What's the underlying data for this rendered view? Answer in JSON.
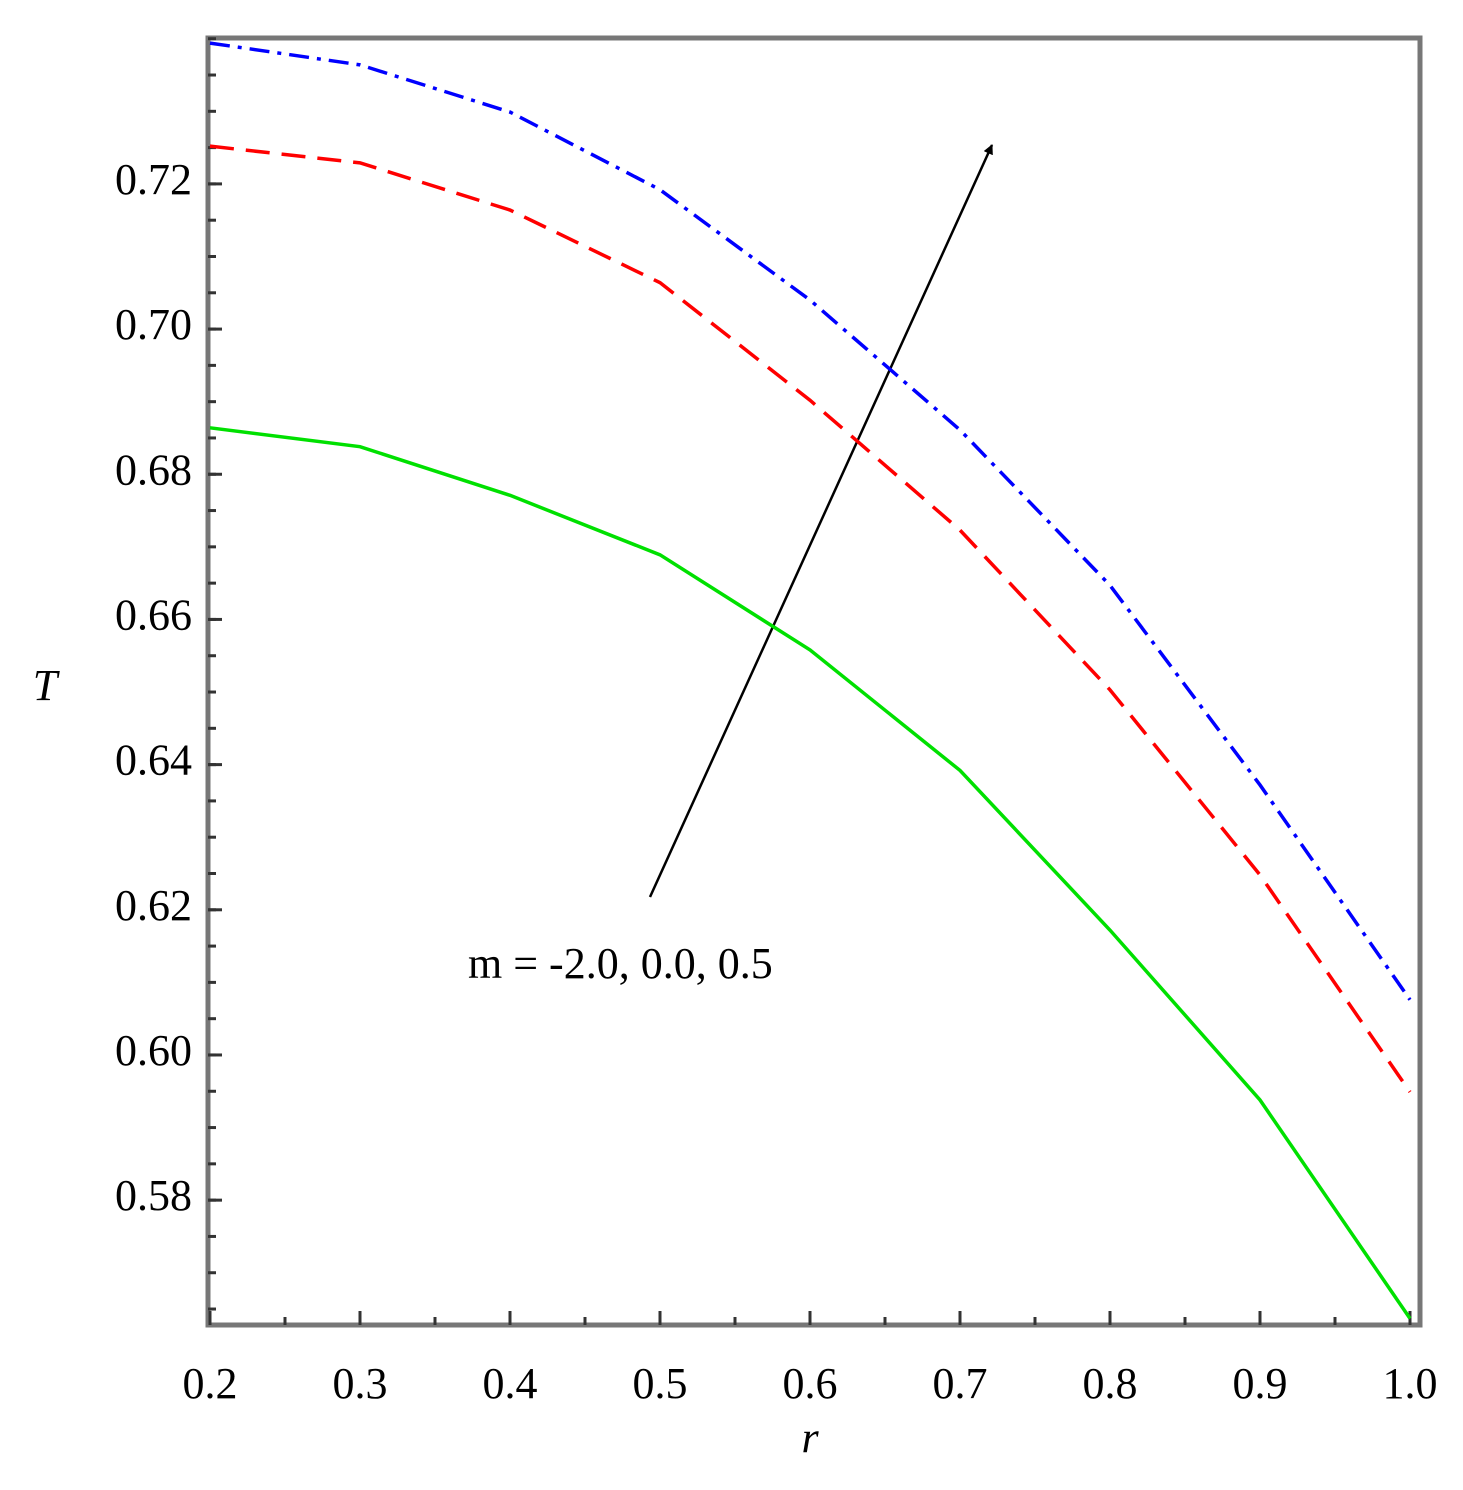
{
  "chart_data": {
    "type": "line",
    "x_label": "r",
    "y_label": "T",
    "annotation": "m = -2.0, 0.0, 0.5",
    "x": [
      0.2,
      0.3,
      0.4,
      0.5,
      0.6,
      0.7,
      0.8,
      0.9,
      1.0
    ],
    "series": [
      {
        "color": "#00e000",
        "dash": "solid",
        "values": [
          0.6864,
          0.6838,
          0.6771,
          0.6689,
          0.6558,
          0.6392,
          0.6172,
          0.5938,
          0.5637
        ]
      },
      {
        "color": "#ff0000",
        "dash": "dashed",
        "values": [
          0.7252,
          0.7229,
          0.7164,
          0.7064,
          0.6902,
          0.6723,
          0.6503,
          0.6248,
          0.5949
        ]
      },
      {
        "color": "#0000ff",
        "dash": "dashdot",
        "values": [
          0.7394,
          0.7364,
          0.7299,
          0.7192,
          0.704,
          0.6861,
          0.6647,
          0.6372,
          0.6076
        ]
      }
    ],
    "xlim": [
      0.2,
      1.0
    ],
    "ylim": [
      0.5628,
      0.7401
    ],
    "xticks": [
      0.2,
      0.3,
      0.4,
      0.5,
      0.6,
      0.7,
      0.8,
      0.9,
      {
        "value": 1.0,
        "label": "1.0"
      }
    ],
    "yticks": [
      0.58,
      {
        "value": 0.6,
        "label": "0.60"
      },
      0.62,
      0.64,
      0.66,
      0.68,
      {
        "value": 0.7,
        "label": "0.70"
      },
      0.72
    ],
    "grid": false
  }
}
